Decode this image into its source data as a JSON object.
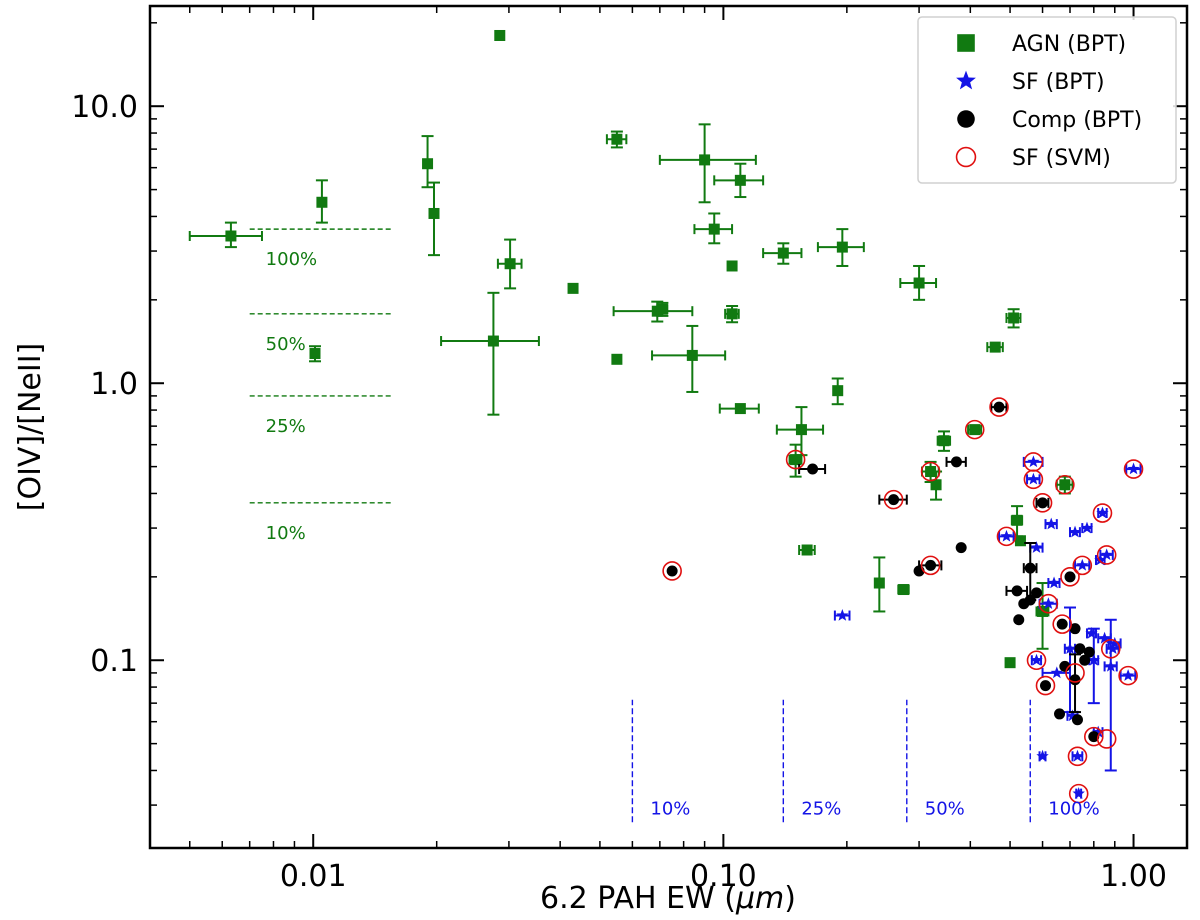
{
  "chart_data": {
    "type": "scatter",
    "title": "",
    "xlabel": "6.2 PAH EW (",
    "xlabel_unit": "μm",
    "xlabel_close": ")",
    "ylabel": "[OIV]/[NeII]",
    "xscale": "log",
    "yscale": "log",
    "xlim": [
      0.004,
      1.35
    ],
    "ylim": [
      0.021,
      23
    ],
    "x_ticks": [
      {
        "value": 0.01,
        "label": "0.01"
      },
      {
        "value": 0.1,
        "label": "0.10"
      },
      {
        "value": 1.0,
        "label": "1.00"
      }
    ],
    "y_ticks": [
      {
        "value": 0.1,
        "label": "0.1"
      },
      {
        "value": 1.0,
        "label": "1.0"
      },
      {
        "value": 10.0,
        "label": "10.0"
      }
    ],
    "legend_position": "top-right",
    "colors": {
      "agn": "#117a11",
      "sf": "#1414e6",
      "comp": "#000000",
      "svm": "#e01010"
    },
    "series": [
      {
        "name": "AGN (BPT)",
        "marker": "square",
        "color": "#117a11",
        "points": [
          {
            "x": 0.0063,
            "y": 3.4,
            "xerr": [
              0.0013,
              0.0012
            ],
            "yerr": [
              0.3,
              0.4
            ]
          },
          {
            "x": 0.0101,
            "y": 1.28,
            "yerr": [
              0.08,
              0.08
            ]
          },
          {
            "x": 0.0105,
            "y": 4.5,
            "yerr": [
              0.7,
              0.9
            ]
          },
          {
            "x": 0.019,
            "y": 6.2,
            "yerr": [
              1.1,
              1.6
            ]
          },
          {
            "x": 0.0197,
            "y": 4.1,
            "yerr": [
              1.2,
              1.2
            ]
          },
          {
            "x": 0.0275,
            "y": 1.42,
            "xerr": [
              0.007,
              0.008
            ],
            "yerr": [
              0.65,
              0.7
            ]
          },
          {
            "x": 0.0285,
            "y": 18.0
          },
          {
            "x": 0.0302,
            "y": 2.7,
            "xerr": [
              0.002,
              0.002
            ],
            "yerr": [
              0.5,
              0.6
            ]
          },
          {
            "x": 0.043,
            "y": 2.2
          },
          {
            "x": 0.055,
            "y": 7.6,
            "xerr": [
              0.003,
              0.003
            ],
            "yerr": [
              0.5,
              0.5
            ]
          },
          {
            "x": 0.055,
            "y": 1.22
          },
          {
            "x": 0.069,
            "y": 1.82,
            "xerr": [
              0.015,
              0.015
            ],
            "yerr": [
              0.15,
              0.15
            ]
          },
          {
            "x": 0.071,
            "y": 1.85,
            "xerr": [
              0.002,
              0.002
            ],
            "yerr": [
              0.1,
              0.1
            ]
          },
          {
            "x": 0.084,
            "y": 1.26,
            "xerr": [
              0.017,
              0.017
            ],
            "yerr": [
              0.33,
              0.35
            ]
          },
          {
            "x": 0.09,
            "y": 6.4,
            "xerr": [
              0.02,
              0.03
            ],
            "yerr": [
              1.9,
              2.2
            ]
          },
          {
            "x": 0.095,
            "y": 3.6,
            "xerr": [
              0.01,
              0.01
            ],
            "yerr": [
              0.4,
              0.5
            ]
          },
          {
            "x": 0.105,
            "y": 2.65
          },
          {
            "x": 0.105,
            "y": 1.78,
            "xerr": [
              0.004,
              0.004
            ],
            "yerr": [
              0.12,
              0.12
            ]
          },
          {
            "x": 0.11,
            "y": 5.4,
            "xerr": [
              0.015,
              0.015
            ],
            "yerr": [
              0.7,
              0.8
            ]
          },
          {
            "x": 0.11,
            "y": 0.81,
            "xerr": [
              0.012,
              0.012
            ]
          },
          {
            "x": 0.14,
            "y": 2.95,
            "xerr": [
              0.015,
              0.015
            ],
            "yerr": [
              0.25,
              0.25
            ]
          },
          {
            "x": 0.15,
            "y": 0.53,
            "xerr": [
              0.005,
              0.005
            ],
            "yerr": [
              0.07,
              0.07
            ]
          },
          {
            "x": 0.155,
            "y": 0.68,
            "xerr": [
              0.02,
              0.02
            ],
            "yerr": [
              0.13,
              0.14
            ]
          },
          {
            "x": 0.16,
            "y": 0.25,
            "xerr": [
              0.007,
              0.007
            ]
          },
          {
            "x": 0.19,
            "y": 0.94,
            "xerr": [
              0.004,
              0.004
            ],
            "yerr": [
              0.1,
              0.1
            ]
          },
          {
            "x": 0.195,
            "y": 3.1,
            "xerr": [
              0.025,
              0.025
            ],
            "yerr": [
              0.45,
              0.5
            ]
          },
          {
            "x": 0.24,
            "y": 0.19,
            "yerr": [
              0.04,
              0.045
            ]
          },
          {
            "x": 0.275,
            "y": 0.18,
            "xerr": [
              0.008,
              0.008
            ]
          },
          {
            "x": 0.3,
            "y": 2.3,
            "xerr": [
              0.03,
              0.03
            ],
            "yerr": [
              0.3,
              0.35
            ]
          },
          {
            "x": 0.32,
            "y": 0.48,
            "xerr": [
              0.015,
              0.015
            ],
            "yerr": [
              0.04,
              0.04
            ]
          },
          {
            "x": 0.33,
            "y": 0.43,
            "xerr": [
              0.006,
              0.006
            ],
            "yerr": [
              0.05,
              0.05
            ]
          },
          {
            "x": 0.345,
            "y": 0.62,
            "xerr": [
              0.012,
              0.012
            ],
            "yerr": [
              0.05,
              0.05
            ]
          },
          {
            "x": 0.41,
            "y": 0.68,
            "xerr": [
              0.015,
              0.015
            ]
          },
          {
            "x": 0.46,
            "y": 1.35,
            "xerr": [
              0.02,
              0.02
            ]
          },
          {
            "x": 0.5,
            "y": 0.098,
            "xerr": [
              0.006,
              0.006
            ]
          },
          {
            "x": 0.51,
            "y": 1.72,
            "xerr": [
              0.02,
              0.02
            ],
            "yerr": [
              0.13,
              0.13
            ]
          },
          {
            "x": 0.52,
            "y": 0.32,
            "xerr": [
              0.015,
              0.015
            ],
            "yerr": [
              0.04,
              0.04
            ]
          },
          {
            "x": 0.53,
            "y": 0.27,
            "xerr": [
              0.01,
              0.01
            ]
          },
          {
            "x": 0.6,
            "y": 0.15,
            "xerr": [
              0.02,
              0.02
            ],
            "yerr": [
              0.04,
              0.04
            ]
          },
          {
            "x": 0.68,
            "y": 0.43,
            "xerr": [
              0.03,
              0.03
            ],
            "yerr": [
              0.03,
              0.03
            ]
          }
        ]
      },
      {
        "name": "SF (BPT)",
        "marker": "star",
        "color": "#1414e6",
        "points": [
          {
            "x": 0.195,
            "y": 0.145,
            "xerr": [
              0.008,
              0.008
            ]
          },
          {
            "x": 0.49,
            "y": 0.28,
            "xerr": [
              0.02,
              0.02
            ]
          },
          {
            "x": 0.57,
            "y": 0.52,
            "xerr": [
              0.03,
              0.03
            ]
          },
          {
            "x": 0.57,
            "y": 0.45,
            "xerr": [
              0.02,
              0.02
            ]
          },
          {
            "x": 0.58,
            "y": 0.255,
            "xerr": [
              0.02,
              0.02
            ]
          },
          {
            "x": 0.58,
            "y": 0.1,
            "xerr": [
              0.015,
              0.015
            ]
          },
          {
            "x": 0.6,
            "y": 0.045,
            "xerr": [
              0.01,
              0.01
            ]
          },
          {
            "x": 0.62,
            "y": 0.16,
            "xerr": [
              0.03,
              0.03
            ]
          },
          {
            "x": 0.63,
            "y": 0.31,
            "xerr": [
              0.02,
              0.02
            ]
          },
          {
            "x": 0.64,
            "y": 0.19,
            "xerr": [
              0.02,
              0.02
            ]
          },
          {
            "x": 0.65,
            "y": 0.09,
            "xerr": [
              0.05,
              0.05
            ]
          },
          {
            "x": 0.7,
            "y": 0.11,
            "xerr": [
              0.02,
              0.02
            ],
            "yerr": [
              0.045,
              0.045
            ]
          },
          {
            "x": 0.71,
            "y": 0.063,
            "xerr": [
              0.02,
              0.02
            ]
          },
          {
            "x": 0.72,
            "y": 0.29,
            "xerr": [
              0.02,
              0.02
            ]
          },
          {
            "x": 0.73,
            "y": 0.045,
            "xerr": [
              0.02,
              0.02
            ]
          },
          {
            "x": 0.735,
            "y": 0.033,
            "xerr": [
              0.01,
              0.01
            ]
          },
          {
            "x": 0.75,
            "y": 0.22,
            "xerr": [
              0.03,
              0.03
            ]
          },
          {
            "x": 0.77,
            "y": 0.3,
            "xerr": [
              0.02,
              0.02
            ]
          },
          {
            "x": 0.79,
            "y": 0.125,
            "xerr": [
              0.02,
              0.02
            ]
          },
          {
            "x": 0.8,
            "y": 0.1,
            "xerr": [
              0.02,
              0.02
            ],
            "yerr": [
              0.03,
              0.03
            ]
          },
          {
            "x": 0.82,
            "y": 0.055,
            "xerr": [
              0.02,
              0.02
            ]
          },
          {
            "x": 0.83,
            "y": 0.23,
            "xerr": [
              0.02,
              0.02
            ]
          },
          {
            "x": 0.84,
            "y": 0.34,
            "xerr": [
              0.02,
              0.02
            ]
          },
          {
            "x": 0.85,
            "y": 0.12,
            "xerr": [
              0.03,
              0.03
            ]
          },
          {
            "x": 0.86,
            "y": 0.24,
            "xerr": [
              0.03,
              0.03
            ]
          },
          {
            "x": 0.88,
            "y": 0.095,
            "xerr": [
              0.03,
              0.03
            ],
            "yerr": [
              0.055,
              0.045
            ]
          },
          {
            "x": 0.89,
            "y": 0.11,
            "xerr": [
              0.03,
              0.03
            ]
          },
          {
            "x": 0.9,
            "y": 0.115,
            "xerr": [
              0.03,
              0.03
            ]
          },
          {
            "x": 0.97,
            "y": 0.088,
            "xerr": [
              0.04,
              0.04
            ]
          },
          {
            "x": 1.0,
            "y": 0.49,
            "xerr": [
              0.04,
              0.04
            ]
          }
        ]
      },
      {
        "name": "Comp (BPT)",
        "marker": "circle",
        "color": "#000000",
        "points": [
          {
            "x": 0.075,
            "y": 0.21
          },
          {
            "x": 0.165,
            "y": 0.49,
            "xerr": [
              0.012,
              0.012
            ]
          },
          {
            "x": 0.26,
            "y": 0.38,
            "xerr": [
              0.02,
              0.02
            ]
          },
          {
            "x": 0.3,
            "y": 0.21
          },
          {
            "x": 0.32,
            "y": 0.22,
            "xerr": [
              0.02,
              0.02
            ]
          },
          {
            "x": 0.37,
            "y": 0.52,
            "xerr": [
              0.02,
              0.02
            ]
          },
          {
            "x": 0.38,
            "y": 0.255
          },
          {
            "x": 0.47,
            "y": 0.82,
            "xerr": [
              0.02,
              0.02
            ]
          },
          {
            "x": 0.52,
            "y": 0.178,
            "xerr": [
              0.03,
              0.03
            ]
          },
          {
            "x": 0.525,
            "y": 0.14
          },
          {
            "x": 0.54,
            "y": 0.16
          },
          {
            "x": 0.56,
            "y": 0.165
          },
          {
            "x": 0.56,
            "y": 0.215,
            "xerr": [
              0.02,
              0.02
            ],
            "yerr": [
              0.05,
              0.05
            ]
          },
          {
            "x": 0.58,
            "y": 0.175
          },
          {
            "x": 0.6,
            "y": 0.37,
            "xerr": [
              0.02,
              0.02
            ]
          },
          {
            "x": 0.61,
            "y": 0.081
          },
          {
            "x": 0.66,
            "y": 0.064
          },
          {
            "x": 0.67,
            "y": 0.135
          },
          {
            "x": 0.68,
            "y": 0.095
          },
          {
            "x": 0.7,
            "y": 0.2
          },
          {
            "x": 0.72,
            "y": 0.13
          },
          {
            "x": 0.72,
            "y": 0.085,
            "yerr": [
              0.02,
              0.02
            ]
          },
          {
            "x": 0.73,
            "y": 0.061
          },
          {
            "x": 0.74,
            "y": 0.11
          },
          {
            "x": 0.76,
            "y": 0.1
          },
          {
            "x": 0.78,
            "y": 0.107
          },
          {
            "x": 0.8,
            "y": 0.053
          }
        ]
      },
      {
        "name": "SF (SVM)",
        "marker": "open-circle",
        "color": "#e01010",
        "points": [
          {
            "x": 0.075,
            "y": 0.21
          },
          {
            "x": 0.15,
            "y": 0.53
          },
          {
            "x": 0.26,
            "y": 0.38
          },
          {
            "x": 0.32,
            "y": 0.22
          },
          {
            "x": 0.32,
            "y": 0.48
          },
          {
            "x": 0.41,
            "y": 0.68
          },
          {
            "x": 0.47,
            "y": 0.82
          },
          {
            "x": 0.49,
            "y": 0.28
          },
          {
            "x": 0.57,
            "y": 0.52
          },
          {
            "x": 0.57,
            "y": 0.45
          },
          {
            "x": 0.58,
            "y": 0.1
          },
          {
            "x": 0.61,
            "y": 0.081
          },
          {
            "x": 0.6,
            "y": 0.37
          },
          {
            "x": 0.62,
            "y": 0.16
          },
          {
            "x": 0.67,
            "y": 0.135
          },
          {
            "x": 0.68,
            "y": 0.43
          },
          {
            "x": 0.7,
            "y": 0.2
          },
          {
            "x": 0.72,
            "y": 0.09
          },
          {
            "x": 0.73,
            "y": 0.045
          },
          {
            "x": 0.735,
            "y": 0.033
          },
          {
            "x": 0.75,
            "y": 0.22
          },
          {
            "x": 0.8,
            "y": 0.053
          },
          {
            "x": 0.84,
            "y": 0.34
          },
          {
            "x": 0.86,
            "y": 0.24
          },
          {
            "x": 0.86,
            "y": 0.052
          },
          {
            "x": 0.88,
            "y": 0.11
          },
          {
            "x": 0.97,
            "y": 0.088
          },
          {
            "x": 1.0,
            "y": 0.49
          }
        ]
      }
    ],
    "agn_fraction_lines": [
      {
        "label": "100%",
        "y": 3.6,
        "x_range": [
          0.007,
          0.0155
        ]
      },
      {
        "label": "50%",
        "y": 1.78,
        "x_range": [
          0.007,
          0.0155
        ]
      },
      {
        "label": "25%",
        "y": 0.9,
        "x_range": [
          0.007,
          0.0155
        ]
      },
      {
        "label": "10%",
        "y": 0.37,
        "x_range": [
          0.007,
          0.0155
        ]
      }
    ],
    "sf_fraction_lines": [
      {
        "label": "10%",
        "x": 0.06,
        "y_range": [
          0.026,
          0.072
        ]
      },
      {
        "label": "25%",
        "x": 0.14,
        "y_range": [
          0.026,
          0.072
        ]
      },
      {
        "label": "50%",
        "x": 0.28,
        "y_range": [
          0.026,
          0.072
        ]
      },
      {
        "label": "100%",
        "x": 0.56,
        "y_range": [
          0.026,
          0.072
        ]
      }
    ]
  }
}
